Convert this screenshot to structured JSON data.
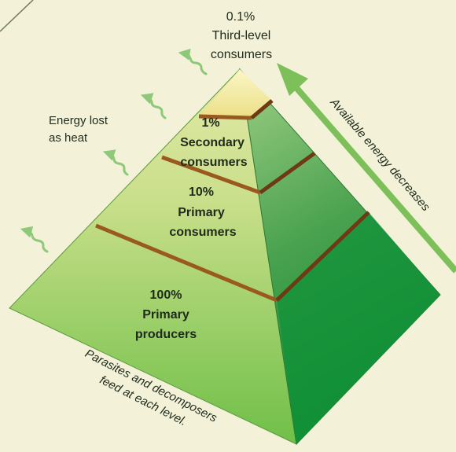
{
  "levels": [
    {
      "percent": "0.1%",
      "line1": "Third-level",
      "line2": "consumers"
    },
    {
      "percent": "1%",
      "line1": "Secondary",
      "line2": "consumers"
    },
    {
      "percent": "10%",
      "line1": "Primary",
      "line2": "consumers"
    },
    {
      "percent": "100%",
      "line1": "Primary",
      "line2": "producers"
    }
  ],
  "energy_lost": {
    "line1": "Energy lost",
    "line2": "as heat"
  },
  "available_energy": "Available energy decreases",
  "parasites": {
    "line1": "Parasites and decomposers",
    "line2": "feed at each level."
  },
  "colors": {
    "background": "#f3f2d9",
    "apex": "#f4ef9b",
    "front_light": "#c9df8a",
    "front_dark": "#6fbf48",
    "side_light": "#79bd66",
    "side_dark": "#0d8a2f",
    "divider": "#9a5a1f",
    "arrow": "#7dc05a",
    "heat": "#8ec97a"
  }
}
